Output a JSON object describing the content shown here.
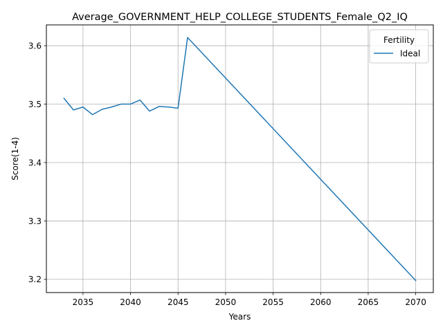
{
  "chart_data": {
    "type": "line",
    "title": "Average_GOVERNMENT_HELP_COLLEGE_STUDENTS_Female_Q2_IQ",
    "xlabel": "Years",
    "ylabel": "Score(1-4)",
    "xlim": [
      2031.15,
      2071.85
    ],
    "ylim": [
      3.1774,
      3.6356
    ],
    "x_ticks": [
      2035,
      2040,
      2045,
      2050,
      2055,
      2060,
      2065,
      2070
    ],
    "y_ticks": [
      3.2,
      3.3,
      3.4,
      3.5,
      3.6
    ],
    "grid": true,
    "legend": {
      "title": "Fertility",
      "placement": "top-right"
    },
    "series": [
      {
        "name": "Ideal",
        "color": "#1f77b4",
        "x": [
          2033,
          2034,
          2035,
          2036,
          2037,
          2038,
          2039,
          2040,
          2041,
          2042,
          2043,
          2044,
          2045,
          2046,
          2070
        ],
        "y": [
          3.51,
          3.49,
          3.495,
          3.482,
          3.491,
          3.495,
          3.5,
          3.5,
          3.507,
          3.488,
          3.496,
          3.495,
          3.493,
          3.614,
          3.198
        ]
      }
    ]
  }
}
